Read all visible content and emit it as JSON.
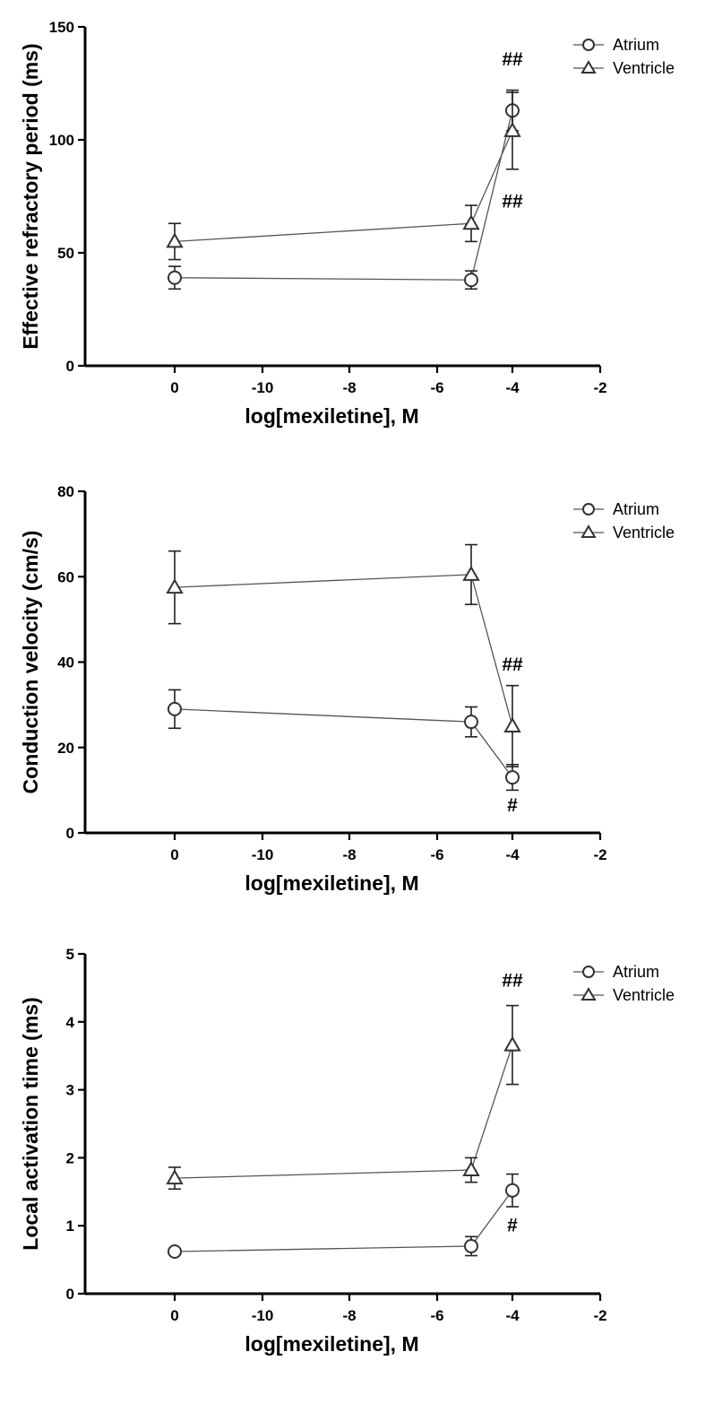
{
  "chart_data": [
    {
      "type": "line",
      "ylabel": "Effective refractory period (ms)",
      "xlabel": "log[mexiletine], M",
      "xticklabels": [
        "0",
        "-10",
        "-8",
        "-6",
        "-4",
        "-2"
      ],
      "yticks": [
        0,
        50,
        100,
        150
      ],
      "ylim": [
        0,
        150
      ],
      "legend_position": "top-right",
      "series": [
        {
          "name": "Atrium",
          "marker": "circle",
          "x": [
            "0",
            "-5",
            "-4"
          ],
          "values": [
            39,
            38,
            113
          ],
          "errors": [
            5,
            4,
            9
          ]
        },
        {
          "name": "Ventricle",
          "marker": "triangle",
          "x": [
            "0",
            "-5",
            "-4"
          ],
          "values": [
            55,
            63,
            104
          ],
          "errors": [
            8,
            8,
            17
          ]
        }
      ],
      "annotations": [
        {
          "text": "##",
          "x": "-4",
          "y": 133
        },
        {
          "text": "##",
          "x": "-4",
          "y": 70
        }
      ]
    },
    {
      "type": "line",
      "ylabel": "Conduction velocity (cm/s)",
      "xlabel": "log[mexiletine], M",
      "xticklabels": [
        "0",
        "-10",
        "-8",
        "-6",
        "-4",
        "-2"
      ],
      "yticks": [
        0,
        20,
        40,
        60,
        80
      ],
      "ylim": [
        0,
        80
      ],
      "legend_position": "top-right",
      "series": [
        {
          "name": "Atrium",
          "marker": "circle",
          "x": [
            "0",
            "-5",
            "-4"
          ],
          "values": [
            29,
            26,
            13
          ],
          "errors": [
            4.5,
            3.5,
            3
          ]
        },
        {
          "name": "Ventricle",
          "marker": "triangle",
          "x": [
            "0",
            "-5",
            "-4"
          ],
          "values": [
            57.5,
            60.5,
            25
          ],
          "errors": [
            8.5,
            7,
            9.5
          ]
        }
      ],
      "annotations": [
        {
          "text": "##",
          "x": "-4",
          "y": 38
        },
        {
          "text": "#",
          "x": "-4",
          "y": 5
        }
      ]
    },
    {
      "type": "line",
      "ylabel": "Local activation time (ms)",
      "xlabel": "log[mexiletine], M",
      "xticklabels": [
        "0",
        "-10",
        "-8",
        "-6",
        "-4",
        "-2"
      ],
      "yticks": [
        0,
        1,
        2,
        3,
        4,
        5
      ],
      "ylim": [
        0,
        5
      ],
      "legend_position": "top-right",
      "series": [
        {
          "name": "Atrium",
          "marker": "circle",
          "x": [
            "0",
            "-5",
            "-4"
          ],
          "values": [
            0.62,
            0.7,
            1.52
          ],
          "errors": [
            0.04,
            0.14,
            0.24
          ]
        },
        {
          "name": "Ventricle",
          "marker": "triangle",
          "x": [
            "0",
            "-5",
            "-4"
          ],
          "values": [
            1.7,
            1.82,
            3.66
          ],
          "errors": [
            0.16,
            0.18,
            0.58
          ]
        }
      ],
      "annotations": [
        {
          "text": "##",
          "x": "-4",
          "y": 4.52
        },
        {
          "text": "#",
          "x": "-4",
          "y": 0.92
        }
      ]
    }
  ]
}
